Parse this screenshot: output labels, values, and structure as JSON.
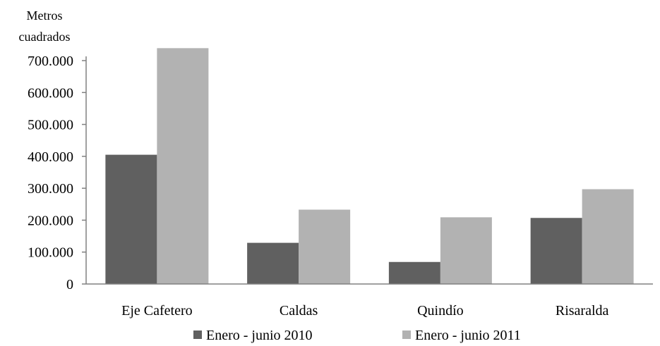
{
  "chart_data": {
    "type": "bar",
    "ylabel_line1": "Metros",
    "ylabel_line2": "cuadrados",
    "categories": [
      "Eje Cafetero",
      "Caldas",
      "Quindío",
      "Risaralda"
    ],
    "series": [
      {
        "name": "Enero - junio 2010",
        "color": "#606060",
        "values": [
          405000,
          129000,
          69000,
          207000
        ]
      },
      {
        "name": "Enero - junio 2011",
        "color": "#b2b2b2",
        "values": [
          739000,
          233000,
          209000,
          297000
        ]
      }
    ],
    "ylim": [
      0,
      700000
    ],
    "yticks": [
      {
        "value": 0,
        "label": "0"
      },
      {
        "value": 100000,
        "label": "100.000"
      },
      {
        "value": 200000,
        "label": "200.000"
      },
      {
        "value": 300000,
        "label": "300.000"
      },
      {
        "value": 400000,
        "label": "400.000"
      },
      {
        "value": 500000,
        "label": "500.000"
      },
      {
        "value": 600000,
        "label": "600.000"
      },
      {
        "value": 700000,
        "label": "700.000"
      }
    ],
    "grid": false,
    "legend_position": "bottom"
  }
}
